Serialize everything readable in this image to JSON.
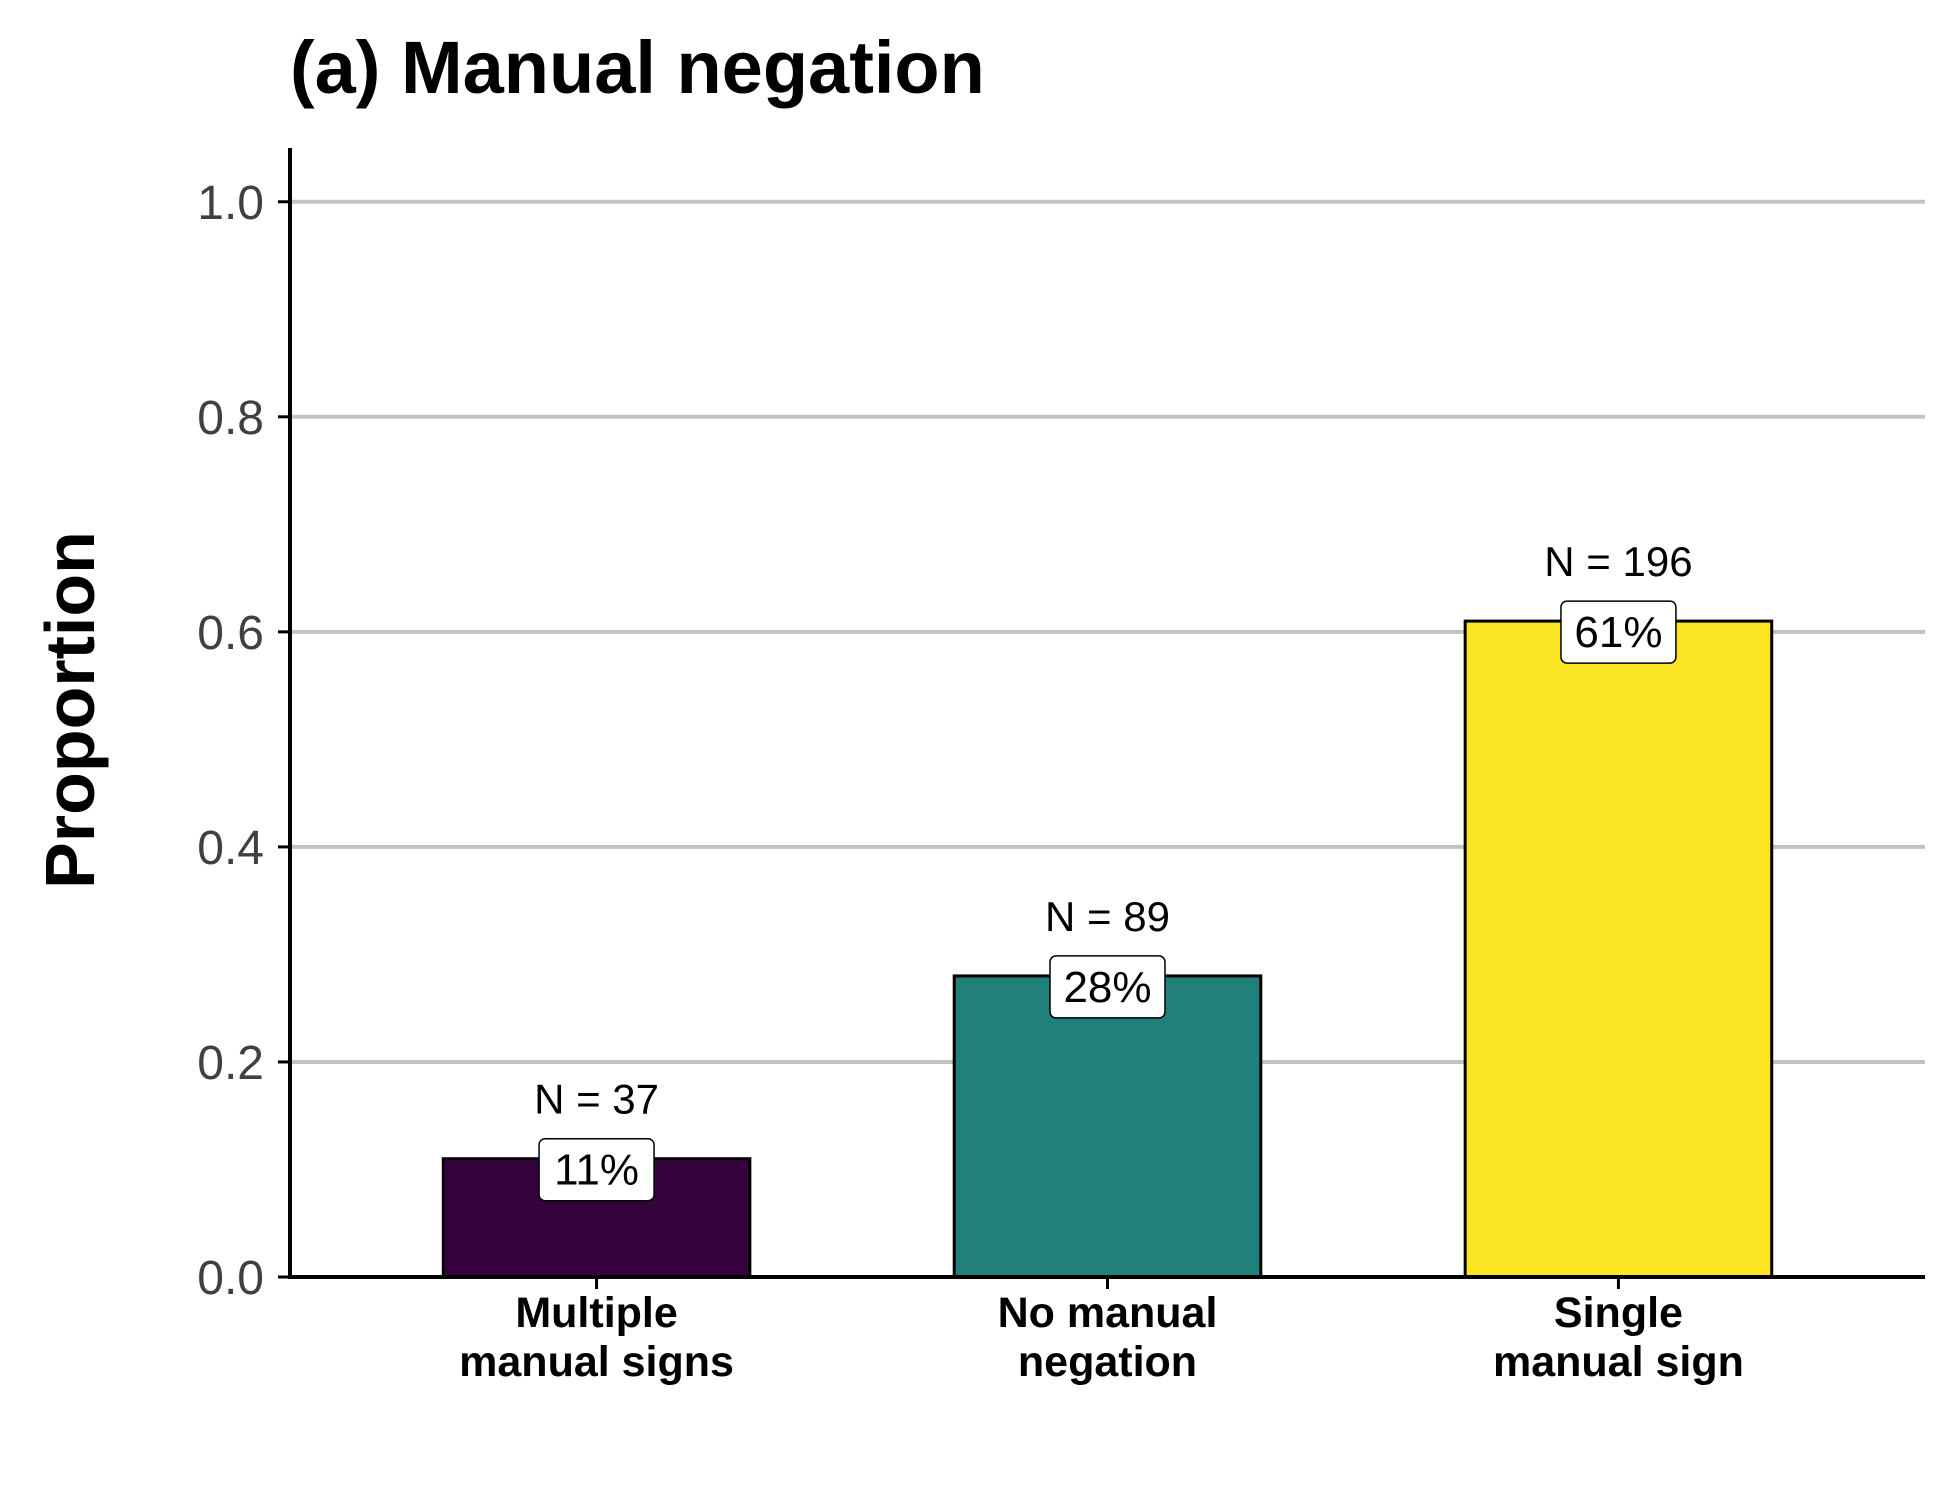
{
  "chart_data": {
    "type": "bar",
    "title": "(a) Manual negation",
    "ylabel": "Proportion",
    "xlabel": "",
    "ylim": [
      0,
      1.05
    ],
    "yticks": [
      "0.0",
      "0.2",
      "0.4",
      "0.6",
      "0.8",
      "1.0"
    ],
    "grid": "horizontal",
    "categories": [
      [
        "Multiple",
        "manual signs"
      ],
      [
        "No manual",
        "negation"
      ],
      [
        "Single",
        "manual sign"
      ]
    ],
    "values": [
      0.11,
      0.28,
      0.61
    ],
    "counts": [
      "N = 37",
      "N = 89",
      "N = 196"
    ],
    "percent_labels": [
      "11%",
      "28%",
      "61%"
    ],
    "colors": [
      "#35023d",
      "#21807a",
      "#fbe422"
    ]
  }
}
